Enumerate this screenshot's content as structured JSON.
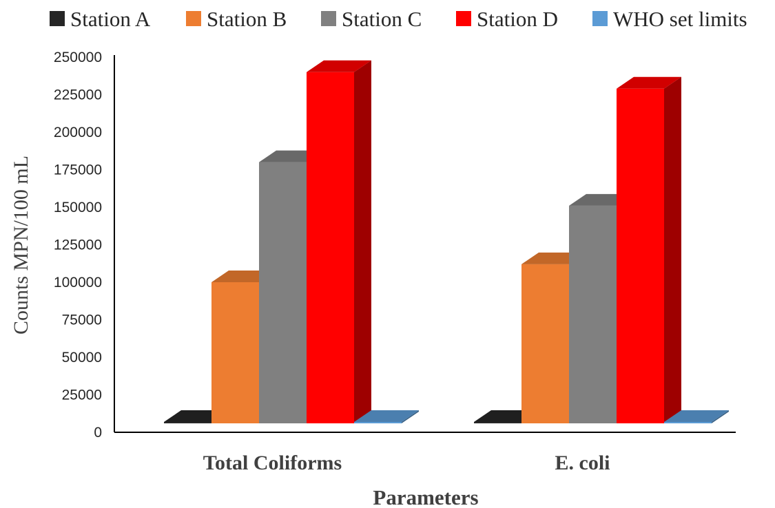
{
  "chart_data": {
    "type": "bar",
    "title": "",
    "xlabel": "Parameters",
    "ylabel": "Counts MPN/100 mL",
    "categories": [
      "Total Coliforms",
      "E. coli"
    ],
    "ylim": [
      0,
      250000
    ],
    "yticks": [
      "0",
      "25000",
      "50000",
      "75000",
      "100000",
      "125000",
      "150000",
      "175000",
      "200000",
      "225000",
      "250000"
    ],
    "legend_position": "top",
    "grid": false,
    "series": [
      {
        "name": "Station A",
        "color": "#262626",
        "values": [
          4000,
          0
        ]
      },
      {
        "name": "Station B",
        "color": "#ED7D31",
        "values": [
          100000,
          112000
        ]
      },
      {
        "name": "Station C",
        "color": "#808080",
        "values": [
          180000,
          151000
        ]
      },
      {
        "name": "Station D",
        "color": "#FF0000",
        "values": [
          240000,
          229000
        ]
      },
      {
        "name": "WHO set limits",
        "color": "#5B9BD5",
        "values": [
          0,
          0
        ]
      }
    ]
  }
}
